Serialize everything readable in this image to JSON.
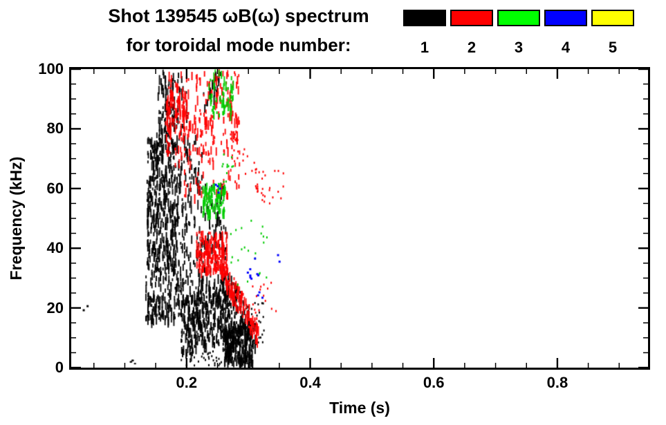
{
  "figure": {
    "title_line1": "Shot 139545 ωB(ω) spectrum",
    "title_line2": "for toroidal mode number:",
    "background": "#ffffff"
  },
  "legend": {
    "modes": [
      {
        "label": "1",
        "color": "#000000"
      },
      {
        "label": "2",
        "color": "#ff0000"
      },
      {
        "label": "3",
        "color": "#00ff00"
      },
      {
        "label": "4",
        "color": "#0000ff"
      },
      {
        "label": "5",
        "color": "#ffff00"
      }
    ]
  },
  "chart_data": {
    "type": "scatter",
    "title": "Shot 139545 ωB(ω) spectrum for toroidal mode number: 1 2 3 4 5",
    "xlabel": "Time (s)",
    "ylabel": "Frequency (kHz)",
    "xlim": [
      0.0133,
      0.9467
    ],
    "ylim": [
      0,
      100
    ],
    "x_major_ticks": [
      0.2,
      0.4,
      0.6,
      0.8
    ],
    "x_tick_labels": [
      "0.2",
      "0.4",
      "0.6",
      "0.8"
    ],
    "x_minor_step": 0.05,
    "y_major_ticks": [
      0,
      20,
      40,
      60,
      80,
      100
    ],
    "y_tick_labels": [
      "0",
      "20",
      "40",
      "60",
      "80",
      "100"
    ],
    "y_minor_step": 5,
    "grid": false,
    "legend_position": "top-right",
    "series": [
      {
        "name": "n=1",
        "color": "#000000",
        "clusters": [
          {
            "kind": "box",
            "t": [
              0.03,
              0.04
            ],
            "f": [
              19,
              22
            ],
            "n": 2,
            "style": "dot",
            "size": [
              3,
              3
            ]
          },
          {
            "kind": "box",
            "t": [
              0.095,
              0.125
            ],
            "f": [
              1,
              4
            ],
            "n": 5,
            "style": "dot",
            "size": [
              3,
              2
            ]
          },
          {
            "kind": "box",
            "t": [
              0.135,
              0.185
            ],
            "f": [
              33,
              78
            ],
            "n": 400,
            "style": "streak"
          },
          {
            "kind": "box",
            "t": [
              0.133,
              0.19
            ],
            "f": [
              16,
              34
            ],
            "n": 140,
            "style": "streak"
          },
          {
            "kind": "box",
            "t": [
              0.15,
              0.2
            ],
            "f": [
              78,
              100
            ],
            "n": 70,
            "style": "streak"
          },
          {
            "kind": "box",
            "t": [
              0.155,
              0.18
            ],
            "f": [
              80,
              100
            ],
            "n": 40,
            "style": "streak"
          },
          {
            "kind": "box",
            "t": [
              0.185,
              0.265
            ],
            "f": [
              22,
              62
            ],
            "n": 200,
            "style": "streak"
          },
          {
            "kind": "box",
            "t": [
              0.185,
              0.225
            ],
            "f": [
              60,
              78
            ],
            "n": 50,
            "style": "streak"
          },
          {
            "kind": "box",
            "t": [
              0.19,
              0.215
            ],
            "f": [
              5,
              25
            ],
            "n": 90,
            "style": "streak"
          },
          {
            "kind": "box",
            "t": [
              0.21,
              0.28
            ],
            "f": [
              8,
              28
            ],
            "n": 260,
            "style": "streak"
          },
          {
            "kind": "box",
            "t": [
              0.258,
              0.307
            ],
            "f": [
              2,
              16
            ],
            "n": 260,
            "style": "streak"
          },
          {
            "kind": "box",
            "t": [
              0.225,
              0.255
            ],
            "f": [
              88,
              100
            ],
            "n": 25,
            "style": "streak"
          },
          {
            "kind": "box",
            "t": [
              0.19,
              0.26
            ],
            "f": [
              1,
              6
            ],
            "n": 30,
            "style": "dot",
            "size": [
              2,
              3
            ]
          },
          {
            "kind": "box",
            "t": [
              0.3,
              0.325
            ],
            "f": [
              8,
              22
            ],
            "n": 25,
            "style": "dot",
            "size": [
              2,
              3
            ]
          },
          {
            "kind": "band",
            "t": [
              0.26,
              0.31
            ],
            "f_start": 30,
            "f_end": 12,
            "halfwidth": 5,
            "n": 80,
            "style": "streak"
          }
        ]
      },
      {
        "name": "n=2",
        "color": "#ff0000",
        "clusters": [
          {
            "kind": "box",
            "t": [
              0.165,
              0.285
            ],
            "f": [
              72,
              100
            ],
            "n": 220,
            "style": "streak"
          },
          {
            "kind": "box",
            "t": [
              0.165,
              0.2
            ],
            "f": [
              78,
              95
            ],
            "n": 60,
            "style": "streak"
          },
          {
            "kind": "box",
            "t": [
              0.18,
              0.285
            ],
            "f": [
              58,
              74
            ],
            "n": 55,
            "style": "streak"
          },
          {
            "kind": "box",
            "t": [
              0.215,
              0.265
            ],
            "f": [
              33,
              46
            ],
            "n": 180,
            "style": "streak"
          },
          {
            "kind": "band",
            "t": [
              0.255,
              0.315
            ],
            "f_start": 34,
            "f_end": 12,
            "halfwidth": 4,
            "n": 120,
            "style": "streak"
          },
          {
            "kind": "band",
            "t": [
              0.27,
              0.335
            ],
            "f_start": 76,
            "f_end": 58,
            "halfwidth": 5,
            "n": 40,
            "style": "dot",
            "size": [
              2,
              3
            ]
          },
          {
            "kind": "box",
            "t": [
              0.31,
              0.36
            ],
            "f": [
              55,
              70
            ],
            "n": 12,
            "style": "dot",
            "size": [
              2,
              3
            ]
          },
          {
            "kind": "box",
            "t": [
              0.3,
              0.345
            ],
            "f": [
              18,
              30
            ],
            "n": 15,
            "style": "dot",
            "size": [
              2,
              3
            ]
          }
        ]
      },
      {
        "name": "n=3",
        "color": "#00cc00",
        "clusters": [
          {
            "kind": "box",
            "t": [
              0.235,
              0.275
            ],
            "f": [
              85,
              100
            ],
            "n": 60,
            "style": "streak"
          },
          {
            "kind": "box",
            "t": [
              0.225,
              0.262
            ],
            "f": [
              52,
              62
            ],
            "n": 90,
            "style": "streak"
          },
          {
            "kind": "box",
            "t": [
              0.255,
              0.275
            ],
            "f": [
              62,
              72
            ],
            "n": 12,
            "style": "dot",
            "size": [
              2,
              3
            ]
          },
          {
            "kind": "box",
            "t": [
              0.27,
              0.33
            ],
            "f": [
              28,
              50
            ],
            "n": 22,
            "style": "dot",
            "size": [
              2,
              3
            ]
          }
        ]
      },
      {
        "name": "n=4",
        "color": "#0000ff",
        "clusters": [
          {
            "kind": "box",
            "t": [
              0.29,
              0.315
            ],
            "f": [
              30,
              40
            ],
            "n": 8,
            "style": "dot",
            "size": [
              3,
              3
            ]
          },
          {
            "kind": "box",
            "t": [
              0.245,
              0.258
            ],
            "f": [
              58,
              64
            ],
            "n": 4,
            "style": "dot",
            "size": [
              3,
              3
            ]
          },
          {
            "kind": "box",
            "t": [
              0.31,
              0.322
            ],
            "f": [
              20,
              26
            ],
            "n": 3,
            "style": "dot",
            "size": [
              3,
              3
            ]
          },
          {
            "kind": "box",
            "t": [
              0.338,
              0.35
            ],
            "f": [
              34,
              40
            ],
            "n": 2,
            "style": "dot",
            "size": [
              3,
              3
            ]
          }
        ]
      },
      {
        "name": "n=5",
        "color": "#ffff00",
        "clusters": []
      }
    ]
  }
}
